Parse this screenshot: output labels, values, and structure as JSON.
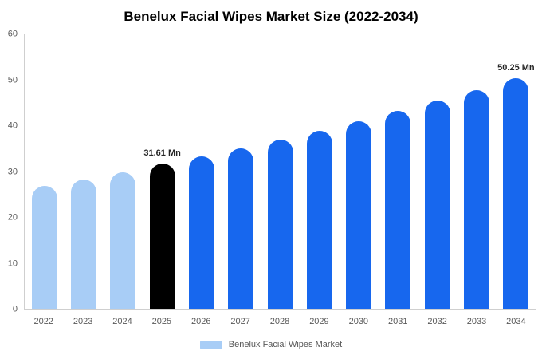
{
  "chart_data": {
    "type": "bar",
    "title": "Benelux Facial Wipes Market Size (2022-2034)",
    "categories": [
      "2022",
      "2023",
      "2024",
      "2025",
      "2026",
      "2027",
      "2028",
      "2029",
      "2030",
      "2031",
      "2032",
      "2033",
      "2034"
    ],
    "values": [
      26.8,
      28.2,
      29.8,
      31.61,
      33.28,
      35.04,
      36.89,
      38.84,
      40.89,
      43.05,
      45.32,
      47.72,
      50.25
    ],
    "bar_colors": [
      "#a8cdf6",
      "#a8cdf6",
      "#a8cdf6",
      "#000000",
      "#1767ee",
      "#1767ee",
      "#1767ee",
      "#1767ee",
      "#1767ee",
      "#1767ee",
      "#1767ee",
      "#1767ee",
      "#1767ee"
    ],
    "annotations": [
      {
        "category": "2025",
        "text": "31.61 Mn"
      },
      {
        "category": "2034",
        "text": "50.25 Mn"
      }
    ],
    "xlabel": "",
    "ylabel": "",
    "ylim": [
      0,
      60
    ],
    "yticks": [
      0,
      10,
      20,
      30,
      40,
      50,
      60
    ],
    "grid": false,
    "legend": {
      "position": "bottom",
      "items": [
        {
          "label": "Benelux Facial Wipes Market",
          "color": "#a8cdf6"
        }
      ]
    }
  }
}
